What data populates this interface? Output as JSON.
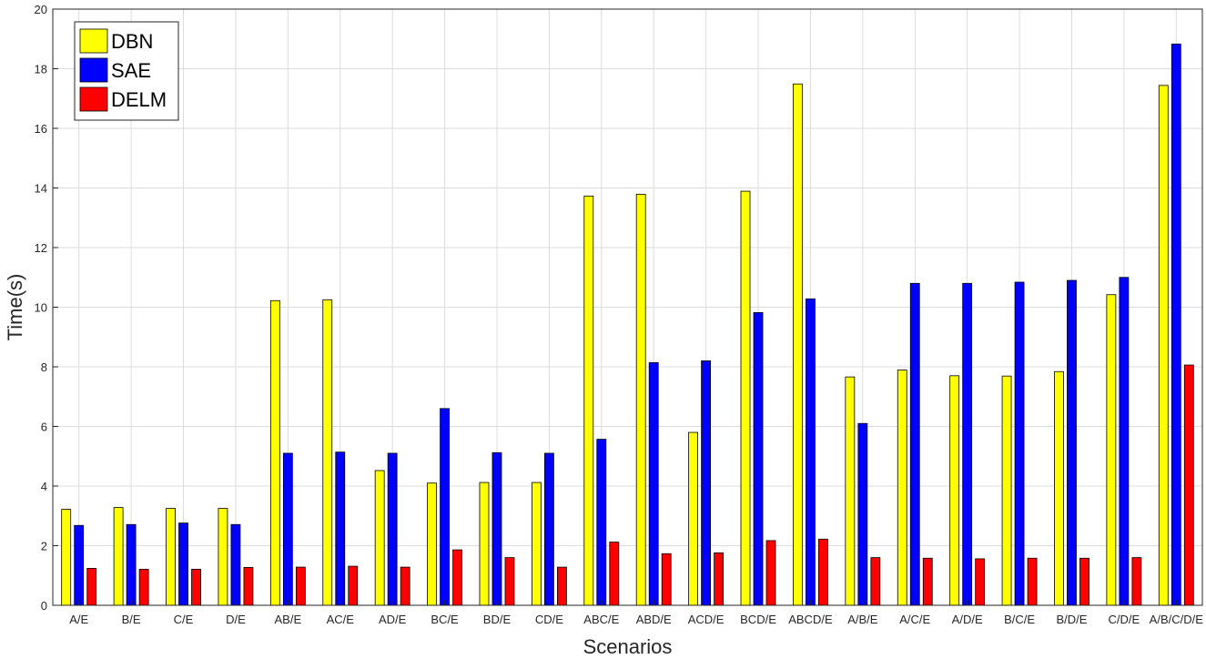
{
  "chart_data": {
    "type": "bar",
    "xlabel": "Scenarios",
    "ylabel": "Time(s)",
    "ylim": [
      0,
      20
    ],
    "yticks": [
      0,
      2,
      4,
      6,
      8,
      10,
      12,
      14,
      16,
      18,
      20
    ],
    "grid": true,
    "legend_position": "top-left",
    "categories": [
      "A/E",
      "B/E",
      "C/E",
      "D/E",
      "AB/E",
      "AC/E",
      "AD/E",
      "BC/E",
      "BD/E",
      "CD/E",
      "ABC/E",
      "ABD/E",
      "ACD/E",
      "BCD/E",
      "ABCD/E",
      "A/B/E",
      "A/C/E",
      "A/D/E",
      "B/C/E",
      "B/D/E",
      "C/D/E",
      "A/B/C/D/E"
    ],
    "series": [
      {
        "name": "DBN",
        "color": "#ffff00",
        "values": [
          3.22,
          3.28,
          3.25,
          3.25,
          10.22,
          10.25,
          4.52,
          4.1,
          4.12,
          4.12,
          13.73,
          13.79,
          5.8,
          13.89,
          17.49,
          7.66,
          7.89,
          7.7,
          7.69,
          7.84,
          10.42,
          17.44
        ]
      },
      {
        "name": "SAE",
        "color": "#0000ff",
        "values": [
          2.68,
          2.71,
          2.76,
          2.71,
          5.1,
          5.14,
          5.1,
          6.6,
          5.12,
          5.1,
          5.57,
          8.14,
          8.2,
          9.82,
          10.28,
          6.1,
          10.8,
          10.8,
          10.84,
          10.9,
          11.0,
          18.83
        ]
      },
      {
        "name": "DELM",
        "color": "#ff0000",
        "values": [
          1.24,
          1.21,
          1.21,
          1.27,
          1.28,
          1.31,
          1.28,
          1.86,
          1.6,
          1.28,
          2.12,
          1.73,
          1.76,
          2.17,
          2.22,
          1.6,
          1.58,
          1.56,
          1.58,
          1.58,
          1.6,
          8.06
        ]
      }
    ]
  }
}
